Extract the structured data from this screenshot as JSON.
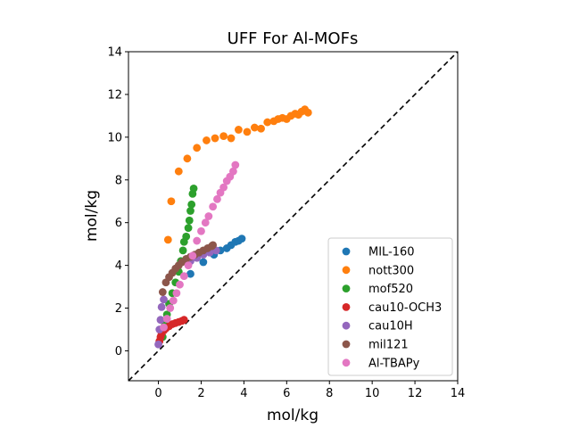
{
  "chart_data": {
    "type": "scatter",
    "title": "UFF For Al-MOFs",
    "xlabel": "mol/kg",
    "ylabel": "mol/kg",
    "xlim": [
      -1.4,
      14
    ],
    "ylim": [
      -1.4,
      14
    ],
    "xticks": [
      "0",
      "2",
      "4",
      "6",
      "8",
      "10",
      "12",
      "14"
    ],
    "yticks": [
      "0",
      "2",
      "4",
      "6",
      "8",
      "10",
      "12",
      "14"
    ],
    "reference_line": {
      "style": "dashed",
      "color": "#000000",
      "from": [
        -1.4,
        -1.4
      ],
      "to": [
        14,
        14
      ]
    },
    "legend_position": "lower-right",
    "grid": false,
    "series": [
      {
        "name": "MIL-160",
        "color": "#1f77b4",
        "points": [
          [
            1.5,
            3.6
          ],
          [
            2.1,
            4.15
          ],
          [
            2.6,
            4.5
          ],
          [
            2.9,
            4.7
          ],
          [
            3.2,
            4.8
          ],
          [
            3.4,
            4.95
          ],
          [
            3.6,
            5.1
          ],
          [
            3.75,
            5.15
          ],
          [
            3.9,
            5.25
          ]
        ]
      },
      {
        "name": "nott300",
        "color": "#ff7f0e",
        "points": [
          [
            0.45,
            5.2
          ],
          [
            0.6,
            7.0
          ],
          [
            0.95,
            8.4
          ],
          [
            1.35,
            9.0
          ],
          [
            1.8,
            9.5
          ],
          [
            2.25,
            9.85
          ],
          [
            2.65,
            9.95
          ],
          [
            3.05,
            10.05
          ],
          [
            3.4,
            9.95
          ],
          [
            3.75,
            10.35
          ],
          [
            4.15,
            10.25
          ],
          [
            4.5,
            10.45
          ],
          [
            4.8,
            10.4
          ],
          [
            5.1,
            10.7
          ],
          [
            5.4,
            10.75
          ],
          [
            5.6,
            10.85
          ],
          [
            5.8,
            10.9
          ],
          [
            6.0,
            10.85
          ],
          [
            6.2,
            11.0
          ],
          [
            6.4,
            11.1
          ],
          [
            6.55,
            11.05
          ],
          [
            6.7,
            11.2
          ],
          [
            6.85,
            11.3
          ],
          [
            7.0,
            11.15
          ]
        ]
      },
      {
        "name": "mof520",
        "color": "#2ca02c",
        "points": [
          [
            0.2,
            0.65
          ],
          [
            0.3,
            1.2
          ],
          [
            0.4,
            1.7
          ],
          [
            0.5,
            2.2
          ],
          [
            0.65,
            2.7
          ],
          [
            0.8,
            3.2
          ],
          [
            0.95,
            3.7
          ],
          [
            1.05,
            4.2
          ],
          [
            1.15,
            4.7
          ],
          [
            1.2,
            5.1
          ],
          [
            1.3,
            5.35
          ],
          [
            1.4,
            5.75
          ],
          [
            1.45,
            6.1
          ],
          [
            1.5,
            6.55
          ],
          [
            1.55,
            6.85
          ],
          [
            1.6,
            7.35
          ],
          [
            1.65,
            7.6
          ]
        ]
      },
      {
        "name": "cau10-OCH3",
        "color": "#d62728",
        "points": [
          [
            0.05,
            0.45
          ],
          [
            0.1,
            0.65
          ],
          [
            0.15,
            0.8
          ],
          [
            0.25,
            0.95
          ],
          [
            0.35,
            1.05
          ],
          [
            0.5,
            1.15
          ],
          [
            0.65,
            1.25
          ],
          [
            0.8,
            1.3
          ],
          [
            0.95,
            1.35
          ],
          [
            1.1,
            1.4
          ],
          [
            1.2,
            1.45
          ]
        ]
      },
      {
        "name": "cau10H",
        "color": "#9467bd",
        "points": [
          [
            0.0,
            0.3
          ],
          [
            0.05,
            1.0
          ],
          [
            0.1,
            1.45
          ],
          [
            0.15,
            2.05
          ],
          [
            0.25,
            2.4
          ],
          [
            1.5,
            4.2
          ],
          [
            1.8,
            4.35
          ],
          [
            2.1,
            4.5
          ],
          [
            2.4,
            4.6
          ],
          [
            2.7,
            4.7
          ]
        ]
      },
      {
        "name": "mil121",
        "color": "#8c564b",
        "points": [
          [
            0.2,
            2.75
          ],
          [
            0.35,
            3.2
          ],
          [
            0.5,
            3.45
          ],
          [
            0.65,
            3.65
          ],
          [
            0.8,
            3.85
          ],
          [
            0.95,
            4.0
          ],
          [
            1.1,
            4.15
          ],
          [
            1.3,
            4.3
          ],
          [
            1.5,
            4.4
          ],
          [
            1.7,
            4.5
          ],
          [
            1.9,
            4.6
          ],
          [
            2.1,
            4.7
          ],
          [
            2.3,
            4.8
          ],
          [
            2.5,
            4.9
          ],
          [
            2.55,
            4.95
          ]
        ]
      },
      {
        "name": "Al-TBAPy",
        "color": "#e377c2",
        "points": [
          [
            0.25,
            1.1
          ],
          [
            0.4,
            1.5
          ],
          [
            0.55,
            2.0
          ],
          [
            0.7,
            2.35
          ],
          [
            0.85,
            2.7
          ],
          [
            1.0,
            3.1
          ],
          [
            1.2,
            3.5
          ],
          [
            1.4,
            4.0
          ],
          [
            1.6,
            4.45
          ],
          [
            1.8,
            5.15
          ],
          [
            2.0,
            5.6
          ],
          [
            2.2,
            6.0
          ],
          [
            2.35,
            6.3
          ],
          [
            2.55,
            6.75
          ],
          [
            2.75,
            7.1
          ],
          [
            2.9,
            7.4
          ],
          [
            3.05,
            7.65
          ],
          [
            3.2,
            7.95
          ],
          [
            3.35,
            8.15
          ],
          [
            3.5,
            8.4
          ],
          [
            3.6,
            8.7
          ]
        ]
      }
    ]
  }
}
